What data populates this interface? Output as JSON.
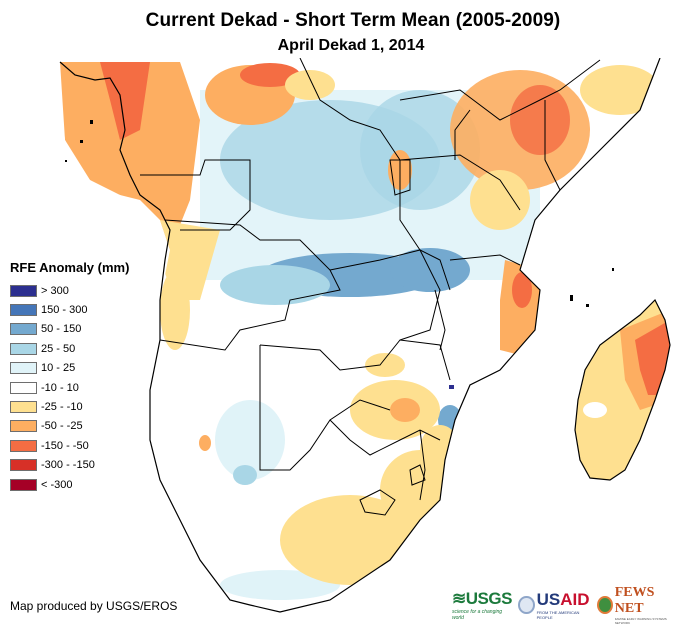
{
  "header": {
    "title": "Current Dekad - Short Term Mean (2005-2009)",
    "subtitle": "April Dekad 1, 2014"
  },
  "legend": {
    "title": "RFE Anomaly (mm)",
    "items": [
      {
        "label": "> 300",
        "color": "#2c2f8f"
      },
      {
        "label": "150 - 300",
        "color": "#4576b8"
      },
      {
        "label": "50 - 150",
        "color": "#74a9cf"
      },
      {
        "label": "25 - 50",
        "color": "#a9d6e6"
      },
      {
        "label": "10 - 25",
        "color": "#e0f3f8"
      },
      {
        "label": "-10 - 10",
        "color": "#ffffff"
      },
      {
        "label": "-25 - -10",
        "color": "#fee090"
      },
      {
        "label": "-50 - -25",
        "color": "#fdae61"
      },
      {
        "label": "-150 - -50",
        "color": "#f46d43"
      },
      {
        "label": "-300 - -150",
        "color": "#d73027"
      },
      {
        "label": "< -300",
        "color": "#a50026"
      }
    ]
  },
  "footer": {
    "credit": "Map produced by USGS/EROS",
    "logos": {
      "usgs": {
        "name": "USGS",
        "tagline": "science for a changing world"
      },
      "usaid": {
        "us": "US",
        "aid": "AID",
        "tagline": "FROM THE AMERICAN PEOPLE"
      },
      "fews": {
        "name": "FEWS NET",
        "tagline": "FAMINE EARLY WARNING SYSTEMS NETWORK"
      }
    }
  },
  "map": {
    "region": "Southern and Central Africa",
    "variable": "RFE Anomaly (mm)",
    "colors": {
      "outline": "#000000",
      "ocean": "#ffffff"
    }
  }
}
